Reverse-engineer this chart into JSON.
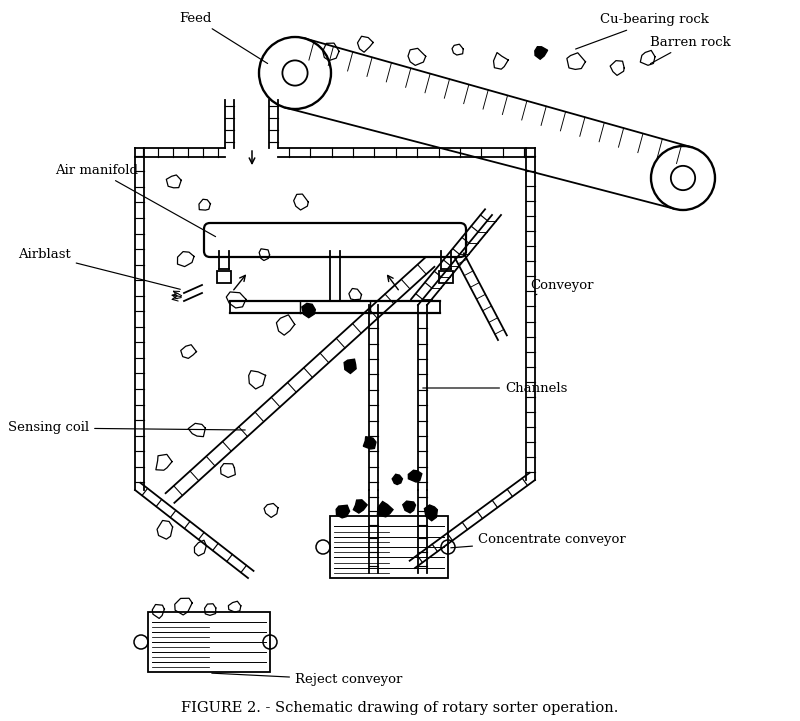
{
  "title": "FIGURE 2. - Schematic drawing of rotary sorter operation.",
  "bg_color": "#ffffff",
  "line_color": "#000000",
  "labels": {
    "feed": "Feed",
    "cu_bearing": "Cu-bearing rock",
    "barren": "Barren rock",
    "air_manifold": "Air manifold",
    "airblast": "Airblast",
    "conveyor": "Conveyor",
    "sensing_coil": "Sensing coil",
    "channels": "Channels",
    "concentrate": "Concentrate conveyor",
    "reject": "Reject conveyor"
  }
}
